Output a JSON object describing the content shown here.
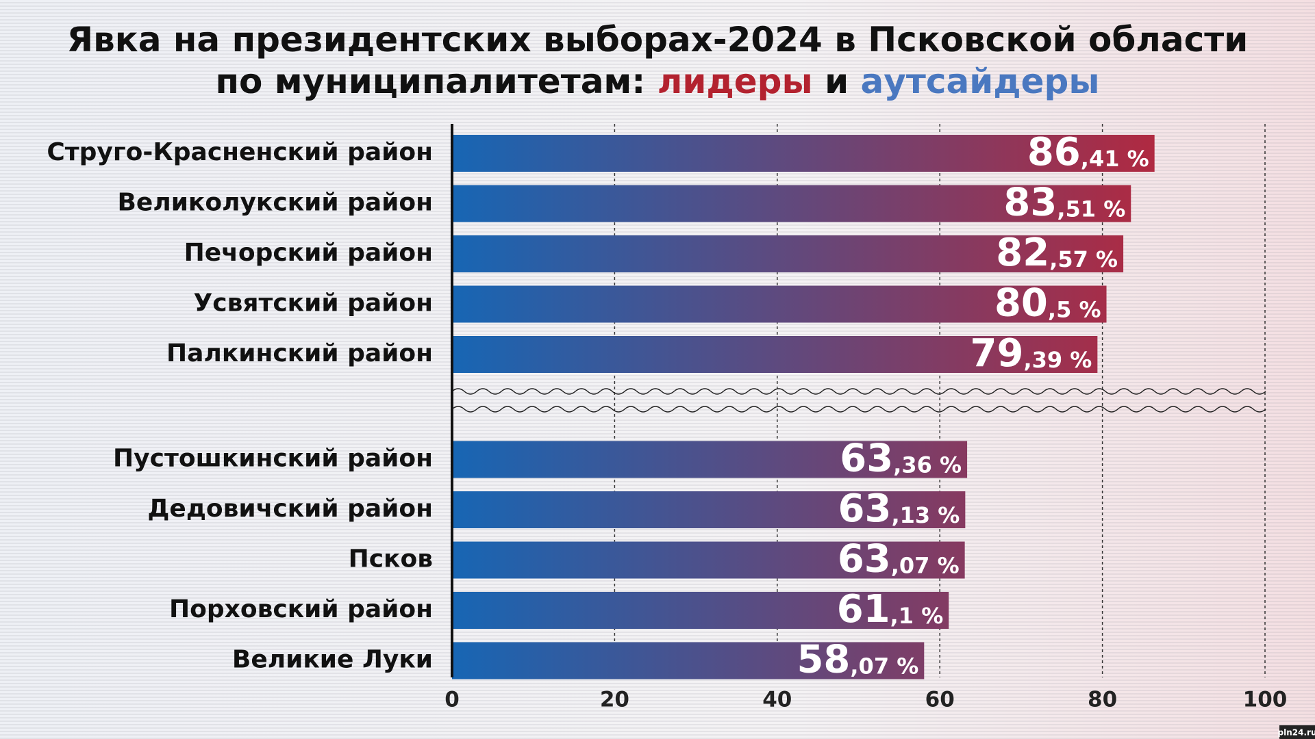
{
  "chart_data": {
    "type": "bar",
    "orientation": "horizontal",
    "title": [
      [
        {
          "text": "Явка на президентских выборах-2024 в Псковской области",
          "color": "#111111"
        }
      ],
      [
        {
          "text": "по муниципалитетам: ",
          "color": "#111111"
        },
        {
          "text": "лидеры",
          "color": "#b3222f"
        },
        {
          "text": " и ",
          "color": "#111111"
        },
        {
          "text": "аутсайдеры",
          "color": "#4a78c0"
        }
      ]
    ],
    "gradient": [
      "#1766b4",
      "#c8202f"
    ],
    "groups": [
      {
        "categories": [
          "Струго-Красненский район",
          "Великолукский район",
          "Печорский район",
          "Усвятский район",
          "Палкинский район"
        ],
        "values": [
          86.41,
          83.51,
          82.57,
          80.5,
          79.39
        ],
        "value_labels": [
          "86,41 %",
          "83,51 %",
          "82,57 %",
          "80,5 %",
          "79,39 %"
        ]
      },
      {
        "categories": [
          "Пустошкинский район",
          "Дедовичский район",
          "Псков",
          "Порховский район",
          "Великие Луки"
        ],
        "values": [
          63.36,
          63.13,
          63.07,
          61.1,
          58.07
        ],
        "value_labels": [
          "63,36 %",
          "63,13 %",
          "63,07 %",
          "61,1 %",
          "58,07 %"
        ]
      }
    ],
    "xlim": [
      0,
      100
    ],
    "xticks": [
      0,
      20,
      40,
      60,
      80,
      100
    ],
    "grid": true,
    "watermark": "pln24.ru"
  }
}
